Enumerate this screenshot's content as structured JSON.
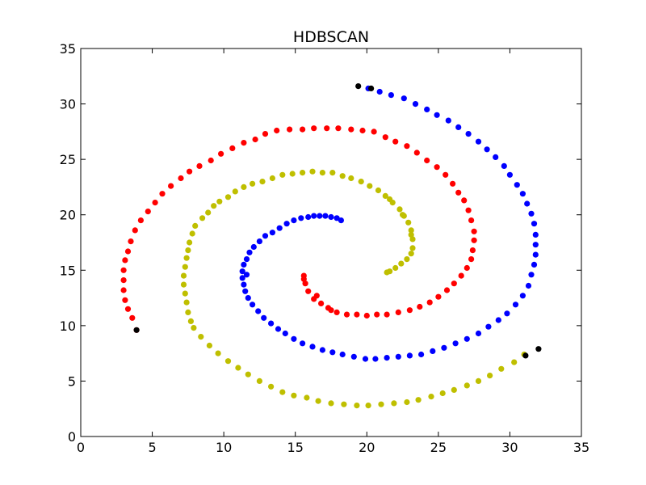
{
  "chart_data": {
    "type": "scatter",
    "title": "HDBSCAN",
    "xlabel": "",
    "ylabel": "",
    "xlim": [
      0,
      35
    ],
    "ylim": [
      0,
      35
    ],
    "xticks": [
      "0",
      "5",
      "10",
      "15",
      "20",
      "25",
      "30",
      "35"
    ],
    "yticks": [
      "0",
      "5",
      "10",
      "15",
      "20",
      "25",
      "30",
      "35"
    ],
    "grid": false,
    "legend": "none",
    "series": [
      {
        "color": "#ff0000",
        "points": [
          [
            3.9,
            9.6
          ],
          [
            3.6,
            10.7
          ],
          [
            3.3,
            11.5
          ],
          [
            3.1,
            12.3
          ],
          [
            3.0,
            13.2
          ],
          [
            3.0,
            14.1
          ],
          [
            3.0,
            15.0
          ],
          [
            3.1,
            15.9
          ],
          [
            3.3,
            16.7
          ],
          [
            3.5,
            17.6
          ],
          [
            3.8,
            18.6
          ],
          [
            4.2,
            19.5
          ],
          [
            4.7,
            20.3
          ],
          [
            5.2,
            21.1
          ],
          [
            5.7,
            21.9
          ],
          [
            6.3,
            22.6
          ],
          [
            7.0,
            23.3
          ],
          [
            7.6,
            23.9
          ],
          [
            8.3,
            24.4
          ],
          [
            9.1,
            24.9
          ],
          [
            9.8,
            25.5
          ],
          [
            10.6,
            26.0
          ],
          [
            11.4,
            26.5
          ],
          [
            12.2,
            26.8
          ],
          [
            12.9,
            27.3
          ],
          [
            13.7,
            27.6
          ],
          [
            14.6,
            27.7
          ],
          [
            15.5,
            27.7
          ],
          [
            16.3,
            27.8
          ],
          [
            17.2,
            27.8
          ],
          [
            18.0,
            27.8
          ],
          [
            18.9,
            27.7
          ],
          [
            19.7,
            27.6
          ],
          [
            20.5,
            27.5
          ],
          [
            21.3,
            27.0
          ],
          [
            22.0,
            26.6
          ],
          [
            22.8,
            26.2
          ],
          [
            23.5,
            25.6
          ],
          [
            24.2,
            24.9
          ],
          [
            24.9,
            24.3
          ],
          [
            25.5,
            23.6
          ],
          [
            26.0,
            22.8
          ],
          [
            26.4,
            22.0
          ],
          [
            26.8,
            21.3
          ],
          [
            27.1,
            20.4
          ],
          [
            27.3,
            19.5
          ],
          [
            27.5,
            18.5
          ],
          [
            27.5,
            17.7
          ],
          [
            27.4,
            16.8
          ],
          [
            27.3,
            16.0
          ],
          [
            27.0,
            15.2
          ],
          [
            26.6,
            14.5
          ],
          [
            26.1,
            13.8
          ],
          [
            25.6,
            13.2
          ],
          [
            25.0,
            12.6
          ],
          [
            24.4,
            12.1
          ],
          [
            23.7,
            11.7
          ],
          [
            23.0,
            11.4
          ],
          [
            22.2,
            11.2
          ],
          [
            21.4,
            11.0
          ],
          [
            20.7,
            11.0
          ],
          [
            20.0,
            10.9
          ],
          [
            19.3,
            11.0
          ],
          [
            18.6,
            11.0
          ],
          [
            17.9,
            11.2
          ],
          [
            17.3,
            11.6
          ],
          [
            16.8,
            12.0
          ],
          [
            16.3,
            12.4
          ],
          [
            15.9,
            13.1
          ],
          [
            15.7,
            13.8
          ],
          [
            15.6,
            14.5
          ],
          [
            15.6,
            14.2
          ],
          [
            16.5,
            12.7
          ],
          [
            17.5,
            11.4
          ]
        ]
      },
      {
        "color": "#bfbf00",
        "points": [
          [
            7.7,
            10.4
          ],
          [
            7.5,
            11.2
          ],
          [
            7.4,
            12.1
          ],
          [
            7.3,
            12.9
          ],
          [
            7.2,
            13.7
          ],
          [
            7.2,
            14.5
          ],
          [
            7.3,
            15.3
          ],
          [
            7.4,
            16.1
          ],
          [
            7.5,
            16.8
          ],
          [
            7.6,
            17.5
          ],
          [
            7.8,
            18.3
          ],
          [
            8.0,
            19.0
          ],
          [
            8.5,
            19.7
          ],
          [
            8.9,
            20.2
          ],
          [
            9.3,
            20.8
          ],
          [
            9.7,
            21.2
          ],
          [
            10.3,
            21.6
          ],
          [
            10.8,
            22.1
          ],
          [
            11.4,
            22.5
          ],
          [
            12.0,
            22.8
          ],
          [
            12.7,
            23.0
          ],
          [
            13.4,
            23.3
          ],
          [
            14.1,
            23.6
          ],
          [
            14.8,
            23.7
          ],
          [
            15.5,
            23.8
          ],
          [
            16.2,
            23.9
          ],
          [
            16.9,
            23.8
          ],
          [
            17.6,
            23.8
          ],
          [
            18.3,
            23.5
          ],
          [
            18.9,
            23.3
          ],
          [
            19.6,
            23.0
          ],
          [
            20.2,
            22.6
          ],
          [
            20.8,
            22.2
          ],
          [
            21.3,
            21.7
          ],
          [
            21.8,
            21.1
          ],
          [
            22.3,
            20.5
          ],
          [
            22.6,
            19.9
          ],
          [
            22.9,
            19.3
          ],
          [
            23.1,
            18.6
          ],
          [
            23.2,
            17.8
          ],
          [
            23.2,
            17.0
          ],
          [
            23.1,
            16.5
          ],
          [
            22.8,
            16.0
          ],
          [
            22.4,
            15.6
          ],
          [
            22.0,
            15.2
          ],
          [
            21.6,
            14.9
          ],
          [
            21.4,
            14.8
          ],
          [
            23.1,
            18.2
          ],
          [
            22.5,
            20.0
          ],
          [
            21.6,
            21.4
          ],
          [
            7.9,
            9.8
          ],
          [
            8.4,
            9.0
          ],
          [
            9.0,
            8.2
          ],
          [
            9.6,
            7.5
          ],
          [
            10.3,
            6.8
          ],
          [
            11.0,
            6.2
          ],
          [
            11.7,
            5.6
          ],
          [
            12.5,
            5.0
          ],
          [
            13.3,
            4.5
          ],
          [
            14.1,
            4.0
          ],
          [
            14.9,
            3.7
          ],
          [
            15.8,
            3.5
          ],
          [
            16.6,
            3.2
          ],
          [
            17.5,
            3.0
          ],
          [
            18.4,
            2.9
          ],
          [
            19.3,
            2.8
          ],
          [
            20.1,
            2.8
          ],
          [
            21.0,
            2.9
          ],
          [
            21.9,
            3.0
          ],
          [
            22.8,
            3.1
          ],
          [
            23.6,
            3.3
          ],
          [
            24.5,
            3.6
          ],
          [
            25.3,
            3.9
          ],
          [
            26.1,
            4.2
          ],
          [
            27.0,
            4.6
          ],
          [
            27.8,
            5.0
          ],
          [
            28.6,
            5.5
          ],
          [
            29.4,
            6.1
          ],
          [
            30.3,
            6.7
          ],
          [
            31.0,
            7.4
          ]
        ]
      },
      {
        "color": "#0000ff",
        "points": [
          [
            18.2,
            19.5
          ],
          [
            17.9,
            19.7
          ],
          [
            17.5,
            19.8
          ],
          [
            17.1,
            19.9
          ],
          [
            16.7,
            19.9
          ],
          [
            16.3,
            19.9
          ],
          [
            15.9,
            19.8
          ],
          [
            15.4,
            19.7
          ],
          [
            14.9,
            19.5
          ],
          [
            14.4,
            19.2
          ],
          [
            13.9,
            18.8
          ],
          [
            13.4,
            18.4
          ],
          [
            12.9,
            18.1
          ],
          [
            12.5,
            17.6
          ],
          [
            12.1,
            17.1
          ],
          [
            11.8,
            16.6
          ],
          [
            11.6,
            16.0
          ],
          [
            11.4,
            15.5
          ],
          [
            11.3,
            14.9
          ],
          [
            11.3,
            14.3
          ],
          [
            11.4,
            13.7
          ],
          [
            11.5,
            13.1
          ],
          [
            11.7,
            12.5
          ],
          [
            12.0,
            11.9
          ],
          [
            12.4,
            11.3
          ],
          [
            12.8,
            10.7
          ],
          [
            13.3,
            10.2
          ],
          [
            13.8,
            9.7
          ],
          [
            14.3,
            9.3
          ],
          [
            14.9,
            8.8
          ],
          [
            15.5,
            8.4
          ],
          [
            16.2,
            8.1
          ],
          [
            16.9,
            7.8
          ],
          [
            17.6,
            7.6
          ],
          [
            18.3,
            7.4
          ],
          [
            19.1,
            7.2
          ],
          [
            19.9,
            7.0
          ],
          [
            20.6,
            7.0
          ],
          [
            21.4,
            7.1
          ],
          [
            22.2,
            7.2
          ],
          [
            23.0,
            7.3
          ],
          [
            23.8,
            7.4
          ],
          [
            24.6,
            7.7
          ],
          [
            25.4,
            8.0
          ],
          [
            26.2,
            8.4
          ],
          [
            27.0,
            8.8
          ],
          [
            27.8,
            9.3
          ],
          [
            28.5,
            9.9
          ],
          [
            29.2,
            10.5
          ],
          [
            29.8,
            11.1
          ],
          [
            30.4,
            11.9
          ],
          [
            30.9,
            12.7
          ],
          [
            31.3,
            13.6
          ],
          [
            31.5,
            14.6
          ],
          [
            31.7,
            15.5
          ],
          [
            31.8,
            16.4
          ],
          [
            31.8,
            17.3
          ],
          [
            31.8,
            18.2
          ],
          [
            31.7,
            19.2
          ],
          [
            31.5,
            20.1
          ],
          [
            31.2,
            21.0
          ],
          [
            30.9,
            21.9
          ],
          [
            30.5,
            22.7
          ],
          [
            30.0,
            23.6
          ],
          [
            29.6,
            24.4
          ],
          [
            29.0,
            25.2
          ],
          [
            28.4,
            25.9
          ],
          [
            27.8,
            26.6
          ],
          [
            27.1,
            27.3
          ],
          [
            26.4,
            27.9
          ],
          [
            25.7,
            28.5
          ],
          [
            24.9,
            29.0
          ],
          [
            24.2,
            29.5
          ],
          [
            23.4,
            30.0
          ],
          [
            22.6,
            30.5
          ],
          [
            21.7,
            30.8
          ],
          [
            20.9,
            31.1
          ],
          [
            20.1,
            31.4
          ],
          [
            11.6,
            14.6
          ]
        ]
      },
      {
        "color": "#000000",
        "points": [
          [
            3.9,
            9.6
          ],
          [
            19.4,
            31.6
          ],
          [
            20.3,
            31.4
          ],
          [
            31.1,
            7.3
          ],
          [
            32.0,
            7.9
          ]
        ]
      }
    ]
  }
}
